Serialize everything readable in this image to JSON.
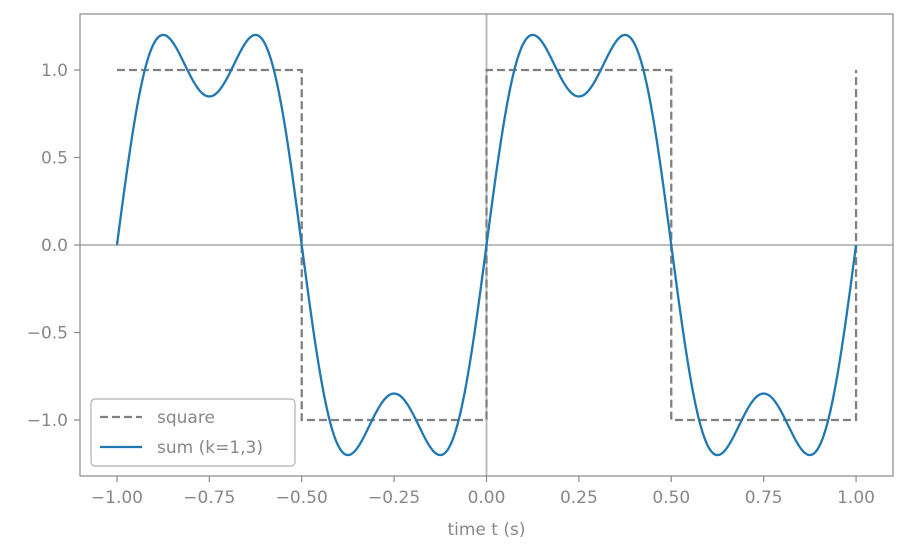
{
  "chart_data": {
    "type": "line",
    "xlabel": "time t (s)",
    "ylabel": "",
    "xlim": [
      -1.1,
      1.1
    ],
    "ylim": [
      -1.32,
      1.32
    ],
    "x_ticks": [
      -1.0,
      -0.75,
      -0.5,
      -0.25,
      0.0,
      0.25,
      0.5,
      0.75,
      1.0
    ],
    "x_tick_labels": [
      "−1.00",
      "−0.75",
      "−0.50",
      "−0.25",
      "0.00",
      "0.25",
      "0.50",
      "0.75",
      "1.00"
    ],
    "y_ticks": [
      1.0,
      0.5,
      0.0,
      -0.5,
      -1.0
    ],
    "y_tick_labels": [
      "1.0",
      "0.5",
      "0.0",
      "−0.5",
      "−1.0"
    ],
    "grid": false,
    "reference_lines": {
      "x": 0,
      "y": 0
    },
    "legend_position": "lower-left",
    "series": [
      {
        "name": "square",
        "style": "dashed",
        "color": "#808080",
        "x": [
          -1.0,
          -0.5,
          -0.5,
          0.0,
          0.0,
          0.5,
          0.5,
          1.0,
          1.0
        ],
        "y": [
          1.0,
          1.0,
          -1.0,
          -1.0,
          1.0,
          1.0,
          -1.0,
          -1.0,
          1.0
        ]
      },
      {
        "name": "sum (k=1,3)",
        "style": "solid",
        "color": "#1f77b4",
        "formula": "(4/pi)*(sin(2*pi*t) + sin(6*pi*t)/3)",
        "x_range": [
          -1.0,
          1.0
        ],
        "x": [
          -1.0,
          -0.875,
          -0.75,
          -0.625,
          -0.5,
          -0.375,
          -0.25,
          -0.125,
          0.0,
          0.125,
          0.25,
          0.375,
          0.5,
          0.625,
          0.75,
          0.875,
          1.0
        ],
        "y": [
          0.0,
          1.2,
          0.85,
          1.2,
          0.0,
          -1.2,
          -0.85,
          -1.2,
          0.0,
          1.2,
          0.85,
          1.2,
          0.0,
          -1.2,
          -0.85,
          -1.2,
          0.0
        ]
      }
    ]
  }
}
